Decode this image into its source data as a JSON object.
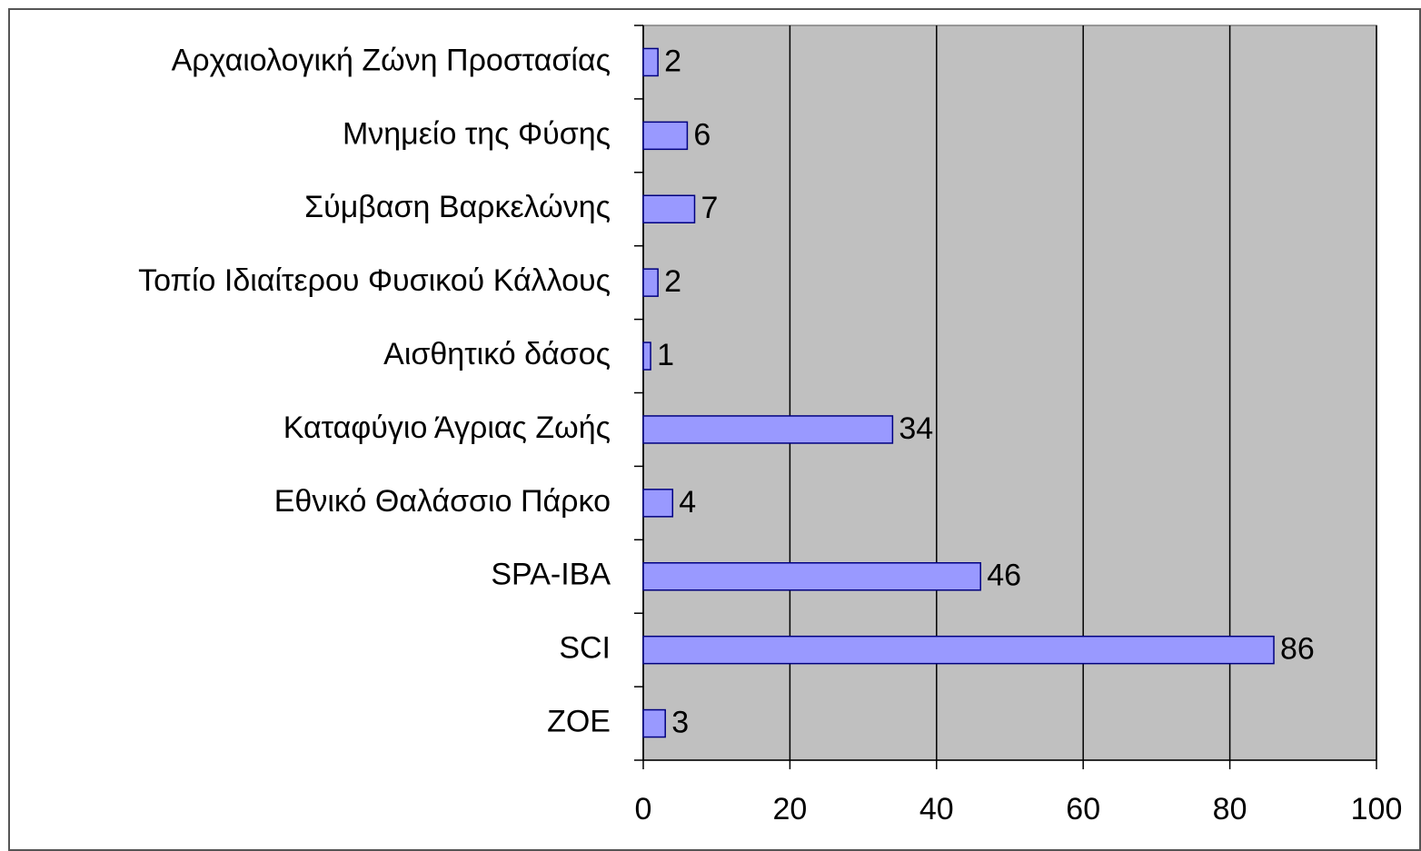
{
  "chart_data": {
    "type": "bar",
    "orientation": "horizontal",
    "categories": [
      "Αρχαιολογική Ζώνη Προστασίας",
      "Μνημείο της Φύσης",
      "Σύμβαση Βαρκελώνης",
      "Τοπίο Ιδιαίτερου Φυσικού Κάλλους",
      "Αισθητικό δάσος",
      "Καταφύγιο Άγριας Ζωής",
      "Εθνικό Θαλάσσιο Πάρκο",
      "SPA-IBA",
      "SCI",
      "ZOE"
    ],
    "values": [
      2,
      6,
      7,
      2,
      1,
      34,
      4,
      46,
      86,
      3
    ],
    "color": "#9999ff",
    "xlim": [
      0,
      100
    ],
    "xticks": [
      0,
      20,
      40,
      60,
      80,
      100
    ],
    "grid": true
  }
}
